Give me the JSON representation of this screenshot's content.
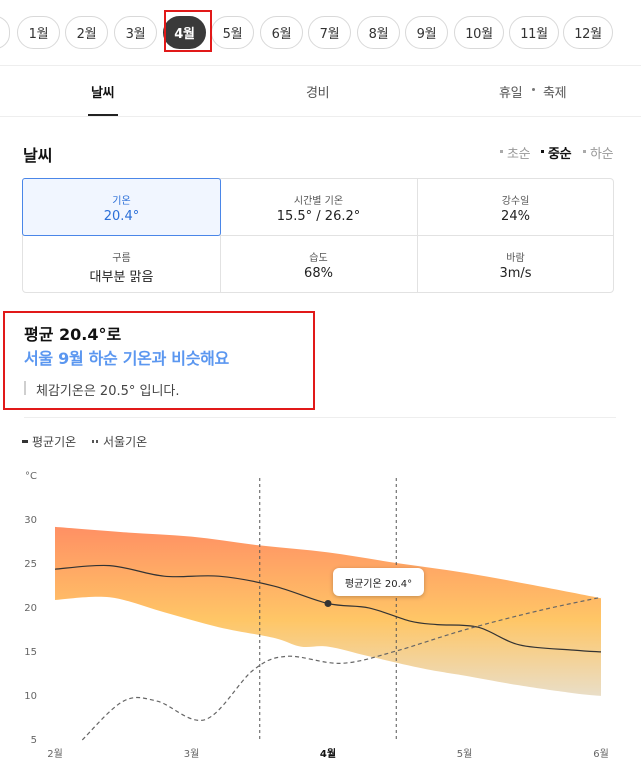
{
  "months": [
    "1월",
    "2월",
    "3월",
    "4월",
    "5월",
    "6월",
    "7월",
    "8월",
    "9월",
    "10월",
    "11월",
    "12월"
  ],
  "selected_month": "4월",
  "tabs": {
    "weather": "날씨",
    "cost": "경비",
    "holiday": "휴일",
    "festival": "축제"
  },
  "weather": {
    "section_title": "날씨",
    "periods": {
      "early": "초순",
      "mid": "중순",
      "late": "하순"
    },
    "selected_period": "중순",
    "stats": {
      "temp": {
        "label": "기온",
        "value": "20.4°"
      },
      "hourly": {
        "label": "시간별 기온",
        "value": "15.5° / 26.2°"
      },
      "rain": {
        "label": "강수일",
        "value": "24%"
      },
      "cloud": {
        "label": "구름",
        "value": "대부분 맑음"
      },
      "humidity": {
        "label": "습도",
        "value": "68%"
      },
      "wind": {
        "label": "바람",
        "value": "3m/s"
      }
    }
  },
  "summary": {
    "line1": "평균 20.4°로",
    "line2": "서울 9월 하순 기온과 비슷해요",
    "line3": "체감기온은 20.5° 입니다."
  },
  "legend": {
    "avg": "평균기온",
    "seoul": "서울기온"
  },
  "tooltip": "평균기온 20.4°",
  "colors": {
    "accent_blue": "#5b97f0",
    "highlight_red": "#e11919",
    "range_top": "#ff8a5c",
    "range_bottom": "#ffd36a"
  },
  "chart_data": {
    "type": "line",
    "y_unit": "°C",
    "ylim": [
      5,
      30
    ],
    "y_ticks": [
      5,
      10,
      15,
      20,
      25,
      30
    ],
    "x_ticks": [
      "2월",
      "3월",
      "4월",
      "5월",
      "6월"
    ],
    "highlighted_x": "4월",
    "series": [
      {
        "name": "평균기온",
        "style": "solid",
        "points": [
          [
            2.0,
            24.3
          ],
          [
            2.4,
            24.7
          ],
          [
            2.8,
            23.5
          ],
          [
            3.2,
            23.5
          ],
          [
            3.6,
            22.4
          ],
          [
            4.0,
            20.4
          ],
          [
            4.3,
            19.9
          ],
          [
            4.6,
            18.4
          ],
          [
            4.8,
            18.0
          ],
          [
            5.1,
            17.7
          ],
          [
            5.4,
            15.7
          ],
          [
            5.8,
            15.1
          ],
          [
            6.0,
            14.9
          ]
        ]
      },
      {
        "name": "서울기온",
        "style": "dashed",
        "points": [
          [
            2.2,
            4.9
          ],
          [
            2.5,
            9.3
          ],
          [
            2.75,
            9.3
          ],
          [
            3.1,
            7.2
          ],
          [
            3.45,
            12.8
          ],
          [
            3.7,
            14.4
          ],
          [
            4.1,
            13.6
          ],
          [
            4.5,
            15.0
          ],
          [
            5.0,
            17.4
          ],
          [
            5.55,
            19.6
          ],
          [
            6.0,
            21.1
          ]
        ]
      },
      {
        "name": "upper_range",
        "style": "area",
        "points": [
          [
            2.0,
            29.1
          ],
          [
            2.5,
            28.5
          ],
          [
            3.0,
            28.0
          ],
          [
            3.5,
            27.0
          ],
          [
            4.0,
            26.2
          ],
          [
            4.5,
            25.0
          ],
          [
            5.0,
            23.9
          ],
          [
            5.5,
            22.5
          ],
          [
            6.0,
            21.0
          ]
        ]
      },
      {
        "name": "lower_range",
        "style": "area",
        "points": [
          [
            2.0,
            20.8
          ],
          [
            2.4,
            21.1
          ],
          [
            2.8,
            19.4
          ],
          [
            3.2,
            17.7
          ],
          [
            3.6,
            16.5
          ],
          [
            3.8,
            15.5
          ],
          [
            4.0,
            15.5
          ],
          [
            4.3,
            14.4
          ],
          [
            4.7,
            13.0
          ],
          [
            5.0,
            12.2
          ],
          [
            5.4,
            11.1
          ],
          [
            5.8,
            10.2
          ],
          [
            6.0,
            9.9
          ]
        ]
      }
    ],
    "period_lines_x": [
      3.5,
      4.5
    ]
  }
}
